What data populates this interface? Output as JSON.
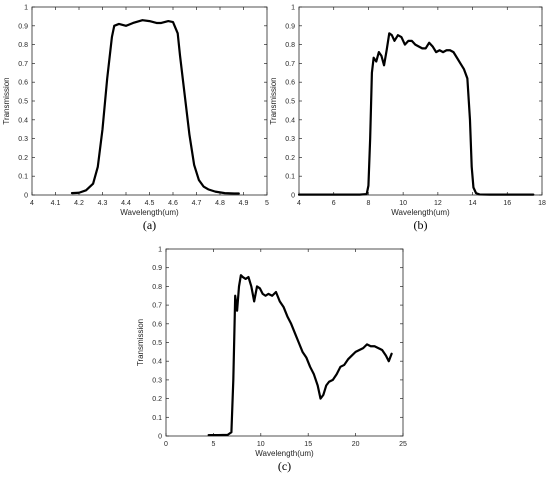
{
  "chart_data": [
    {
      "panel": "a",
      "type": "line",
      "xlabel": "Wavelength(um)",
      "ylabel": "Transmission",
      "xlim": [
        4,
        5
      ],
      "ylim": [
        0,
        1
      ],
      "xticks": [
        "4",
        "4.1",
        "4.2",
        "4.3",
        "4.4",
        "4.5",
        "4.6",
        "4.7",
        "4.8",
        "4.9",
        "5"
      ],
      "yticks": [
        "0",
        "0.1",
        "0.2",
        "0.3",
        "0.4",
        "0.5",
        "0.6",
        "0.7",
        "0.8",
        "0.9",
        "1"
      ],
      "caption": "(a)",
      "grid": false,
      "series": [
        {
          "x": [
            4.17,
            4.2,
            4.23,
            4.26,
            4.28,
            4.3,
            4.32,
            4.34,
            4.35,
            4.37,
            4.4,
            4.43,
            4.47,
            4.5,
            4.53,
            4.55,
            4.58,
            4.6,
            4.62,
            4.63,
            4.65,
            4.67,
            4.69,
            4.71,
            4.73,
            4.75,
            4.78,
            4.82,
            4.86,
            4.88
          ],
          "y": [
            0.01,
            0.012,
            0.025,
            0.06,
            0.15,
            0.35,
            0.62,
            0.84,
            0.9,
            0.91,
            0.9,
            0.915,
            0.93,
            0.925,
            0.915,
            0.915,
            0.925,
            0.92,
            0.86,
            0.74,
            0.53,
            0.32,
            0.16,
            0.08,
            0.045,
            0.03,
            0.018,
            0.01,
            0.008,
            0.008
          ]
        }
      ]
    },
    {
      "panel": "b",
      "type": "line",
      "xlabel": "Wavelength(um)",
      "ylabel": "Transmission",
      "xlim": [
        4,
        18
      ],
      "ylim": [
        0,
        1
      ],
      "xticks": [
        "4",
        "6",
        "8",
        "10",
        "12",
        "14",
        "16",
        "18"
      ],
      "yticks": [
        "0",
        "0.1",
        "0.2",
        "0.3",
        "0.4",
        "0.5",
        "0.6",
        "0.7",
        "0.8",
        "0.9",
        "1"
      ],
      "caption": "(b)",
      "grid": false,
      "series": [
        {
          "x": [
            4,
            7.5,
            7.9,
            8.0,
            8.1,
            8.2,
            8.3,
            8.45,
            8.6,
            8.75,
            8.9,
            9.05,
            9.2,
            9.35,
            9.5,
            9.7,
            9.9,
            10.1,
            10.3,
            10.5,
            10.7,
            10.9,
            11.1,
            11.3,
            11.5,
            11.7,
            11.9,
            12.1,
            12.3,
            12.5,
            12.7,
            12.9,
            13.1,
            13.3,
            13.5,
            13.7,
            13.85,
            13.95,
            14.05,
            14.2,
            14.4,
            15,
            16,
            17.5
          ],
          "y": [
            0.002,
            0.002,
            0.005,
            0.05,
            0.3,
            0.65,
            0.73,
            0.71,
            0.76,
            0.74,
            0.69,
            0.77,
            0.86,
            0.85,
            0.82,
            0.85,
            0.84,
            0.8,
            0.82,
            0.82,
            0.8,
            0.79,
            0.78,
            0.78,
            0.81,
            0.79,
            0.76,
            0.77,
            0.76,
            0.77,
            0.77,
            0.76,
            0.73,
            0.7,
            0.67,
            0.62,
            0.4,
            0.15,
            0.04,
            0.01,
            0.003,
            0.002,
            0.002,
            0.002
          ]
        }
      ]
    },
    {
      "panel": "c",
      "type": "line",
      "xlabel": "Wavelength(um)",
      "ylabel": "Transmission",
      "xlim": [
        0,
        25
      ],
      "ylim": [
        0,
        1
      ],
      "xticks": [
        "0",
        "5",
        "10",
        "15",
        "20",
        "25"
      ],
      "yticks": [
        "0",
        "0.1",
        "0.2",
        "0.3",
        "0.4",
        "0.5",
        "0.6",
        "0.7",
        "0.8",
        "0.9",
        "1"
      ],
      "caption": "(c)",
      "grid": false,
      "series": [
        {
          "x": [
            4.5,
            5.5,
            6.5,
            6.9,
            7.1,
            7.3,
            7.5,
            7.7,
            7.9,
            8.1,
            8.4,
            8.7,
            9.0,
            9.3,
            9.6,
            9.9,
            10.2,
            10.5,
            10.8,
            11.2,
            11.6,
            12.0,
            12.4,
            12.8,
            13.2,
            13.6,
            14.0,
            14.4,
            14.8,
            15.2,
            15.6,
            16.0,
            16.3,
            16.6,
            16.9,
            17.2,
            17.6,
            18.0,
            18.4,
            18.8,
            19.2,
            19.6,
            20.0,
            20.4,
            20.8,
            21.2,
            21.6,
            22.0,
            22.4,
            22.8,
            23.2,
            23.5,
            23.8
          ],
          "y": [
            0.005,
            0.005,
            0.006,
            0.02,
            0.3,
            0.75,
            0.67,
            0.8,
            0.86,
            0.85,
            0.84,
            0.85,
            0.8,
            0.72,
            0.8,
            0.79,
            0.76,
            0.75,
            0.76,
            0.75,
            0.77,
            0.72,
            0.69,
            0.64,
            0.6,
            0.55,
            0.5,
            0.45,
            0.42,
            0.37,
            0.33,
            0.27,
            0.2,
            0.22,
            0.27,
            0.29,
            0.3,
            0.33,
            0.37,
            0.38,
            0.41,
            0.43,
            0.45,
            0.46,
            0.47,
            0.49,
            0.48,
            0.48,
            0.47,
            0.46,
            0.43,
            0.4,
            0.44
          ]
        }
      ]
    }
  ]
}
